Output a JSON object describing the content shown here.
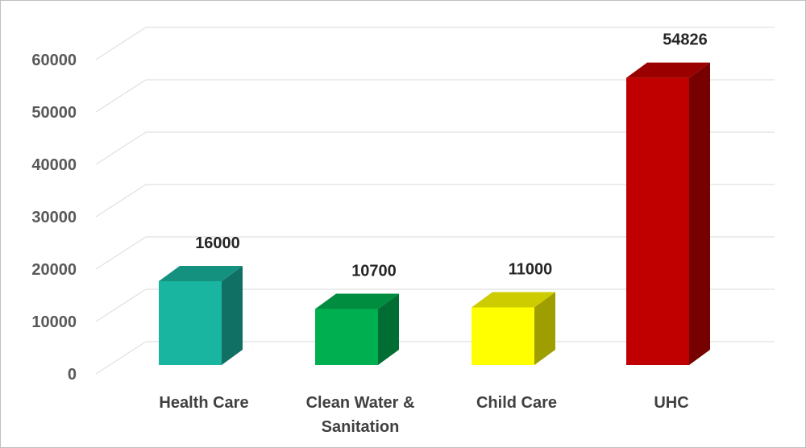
{
  "chart_data": {
    "type": "bar",
    "style": "3d-column",
    "categories": [
      "Health Care",
      "Clean Water & Sanitation",
      "Child Care",
      "UHC"
    ],
    "category_lines": [
      [
        "Health Care"
      ],
      [
        "Clean Water &",
        "Sanitation"
      ],
      [
        "Child Care"
      ],
      [
        "UHC"
      ]
    ],
    "values": [
      16000,
      10700,
      11000,
      54826
    ],
    "data_labels": [
      "16000",
      "10700",
      "11000",
      "54826"
    ],
    "colors": [
      "#1ab5a0",
      "#00b050",
      "#ffff00",
      "#c00000"
    ],
    "y_ticks": [
      "0",
      "10000",
      "20000",
      "30000",
      "40000",
      "50000",
      "60000"
    ],
    "ylim": [
      0,
      60000
    ],
    "title": "",
    "xlabel": "",
    "ylabel": "",
    "grid": true,
    "legend": "none"
  }
}
